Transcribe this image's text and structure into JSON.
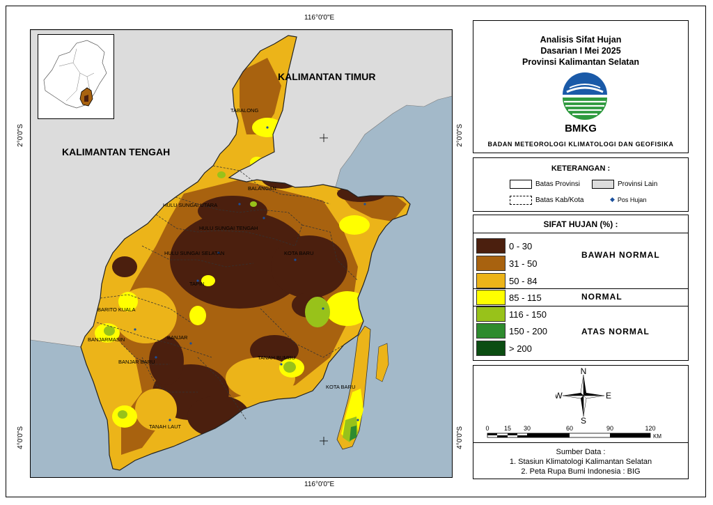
{
  "coords": {
    "top": "116°0'0\"E",
    "bottom": "116°0'0\"E",
    "left_upper": "2°0'0\"S",
    "left_lower": "4°0'0\"S",
    "right_upper": "2°0'0\"S",
    "right_lower": "4°0'0\"S"
  },
  "title": {
    "line1": "Analisis Sifat Hujan",
    "line2": "Dasarian I Mei 2025",
    "line3": "Provinsi Kalimantan Selatan",
    "logo_text": "BMKG",
    "agency": "BADAN METEOROLOGI KLIMATOLOGI DAN GEOFISIKA"
  },
  "keterangan": {
    "title": "KETERANGAN :",
    "batas_provinsi": "Batas Provinsi",
    "provinsi_lain": "Provinsi Lain",
    "batas_kab": "Batas Kab/Kota",
    "pos_hujan": "Pos Hujan"
  },
  "sifat": {
    "title": "SIFAT HUJAN (%) :",
    "classes": [
      {
        "label": "0 - 30",
        "color": "#4b1f0e"
      },
      {
        "label": "31 - 50",
        "color": "#a8620f"
      },
      {
        "label": "50 - 84",
        "color": "#ecb419"
      },
      {
        "label": "85 - 115",
        "color": "#ffff00"
      },
      {
        "label": "116 - 150",
        "color": "#98c21a"
      },
      {
        "label": "150 - 200",
        "color": "#2e8b2e"
      },
      {
        "label": "> 200",
        "color": "#0b4d12"
      }
    ],
    "cat_bawah": "BAWAH NORMAL",
    "cat_normal": "NORMAL",
    "cat_atas": "ATAS NORMAL"
  },
  "compass": {
    "n": "N",
    "s": "S",
    "e": "E",
    "w": "W"
  },
  "scale": {
    "ticks": [
      "0",
      "15",
      "30",
      "60",
      "90",
      "120"
    ],
    "unit": "KM"
  },
  "source": {
    "title": "Sumber Data :",
    "line1": "1. Stasiun Klimatologi Kalimantan Selatan",
    "line2": "2. Peta Rupa Bumi Indonesia : BIG"
  },
  "map_labels": {
    "kaltim": "KALIMANTAN TIMUR",
    "kalteng": "KALIMANTAN TENGAH",
    "tabalong": "TABALONG",
    "balangan": "BALANGAN",
    "hsu": "HULU SUNGAI UTARA",
    "hst": "HULU SUNGAI TENGAH",
    "hss": "HULU SUNGAI SELATAN",
    "kotabaru1": "KOTA BARU",
    "tapin": "TAPIN",
    "baritokuala": "BARITO KUALA",
    "banjarmasin": "BANJARMASIN",
    "banjar": "BANJAR",
    "banjarbaru": "BANJAR BARU",
    "tanahbumbu": "TANAH BUMBU",
    "kotabaru2": "KOTA BARU",
    "tanahlaut": "TANAH LAUT"
  }
}
